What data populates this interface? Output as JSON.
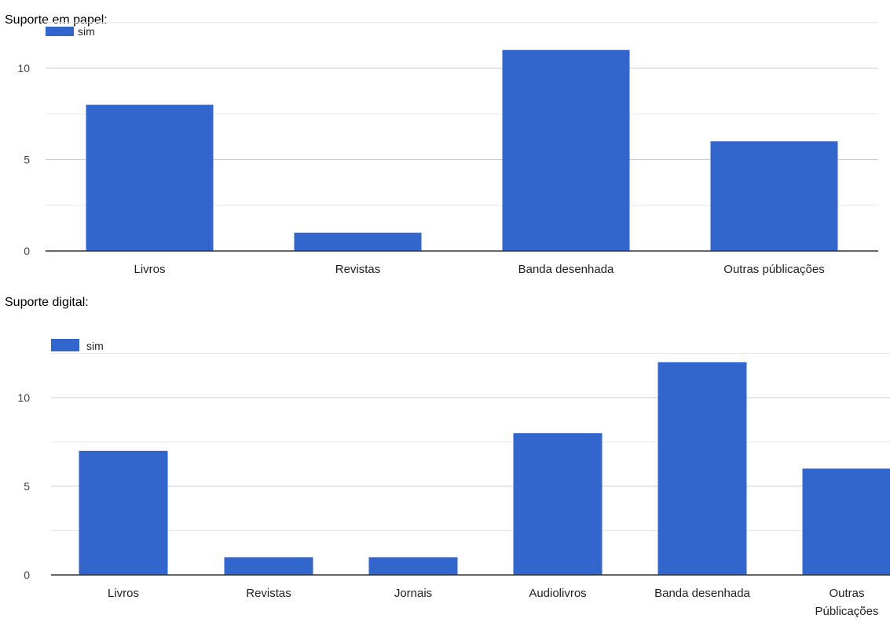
{
  "colors": {
    "bar": "#3366cc",
    "grid": "#e6e6e6",
    "axis": "#333333"
  },
  "sections": [
    {
      "title": "Suporte em papel:"
    },
    {
      "title": "Suporte digital:"
    }
  ],
  "chart_data": [
    {
      "type": "bar",
      "title": "",
      "categories": [
        "Livros",
        "Revistas",
        "Banda desenhada",
        "Outras públicações"
      ],
      "series": [
        {
          "name": "sim",
          "values": [
            8,
            1,
            11,
            6
          ]
        }
      ],
      "yticks": [
        0,
        5,
        10
      ],
      "ylim": [
        0,
        12.5
      ],
      "grid": true,
      "legend": "top-left"
    },
    {
      "type": "bar",
      "title": "",
      "categories": [
        "Livros",
        "Revistas",
        "Jornais",
        "Audiolivros",
        "Banda desenhada",
        "Outras Públicações"
      ],
      "series": [
        {
          "name": "sim",
          "values": [
            7,
            1,
            1,
            8,
            12,
            6
          ]
        }
      ],
      "yticks": [
        0,
        5,
        10
      ],
      "ylim": [
        0,
        12.5
      ],
      "grid": true,
      "legend": "top-left"
    }
  ]
}
